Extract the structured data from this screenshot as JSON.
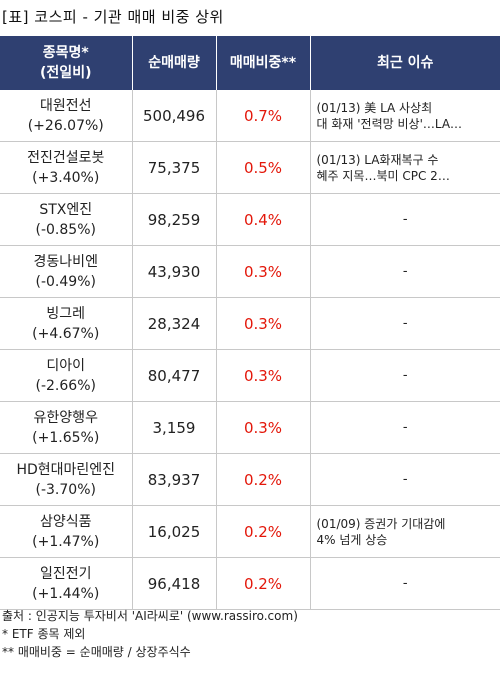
{
  "title": "[표] 코스피 - 기관 매매 비중 상위",
  "headers": {
    "name": [
      "종목명*",
      "(전일비)"
    ],
    "volume": "순매매량",
    "ratio": "매매비중**",
    "news": "최근 이슈"
  },
  "rows": [
    {
      "name": "대원전선",
      "change": "(+26.07%)",
      "volume": "500,496",
      "ratio": "0.7%",
      "news": [
        "(01/13) 美 LA 사상최",
        "대 화재 '전력망 비상'…LA…"
      ]
    },
    {
      "name": "전진건설로봇",
      "change": "(+3.40%)",
      "volume": "75,375",
      "ratio": "0.5%",
      "news": [
        "(01/13) LA화재복구 수",
        "혜주 지목…북미 CPC 2…"
      ]
    },
    {
      "name": "STX엔진",
      "change": "(-0.85%)",
      "volume": "98,259",
      "ratio": "0.4%",
      "news": [
        "-"
      ]
    },
    {
      "name": "경동나비엔",
      "change": "(-0.49%)",
      "volume": "43,930",
      "ratio": "0.3%",
      "news": [
        "-"
      ]
    },
    {
      "name": "빙그레",
      "change": "(+4.67%)",
      "volume": "28,324",
      "ratio": "0.3%",
      "news": [
        "-"
      ]
    },
    {
      "name": "디아이",
      "change": "(-2.66%)",
      "volume": "80,477",
      "ratio": "0.3%",
      "news": [
        "-"
      ]
    },
    {
      "name": "유한양행우",
      "change": "(+1.65%)",
      "volume": "3,159",
      "ratio": "0.3%",
      "news": [
        "-"
      ]
    },
    {
      "name": "HD현대마린엔진",
      "change": "(-3.70%)",
      "volume": "83,937",
      "ratio": "0.2%",
      "news": [
        "-"
      ]
    },
    {
      "name": "삼양식품",
      "change": "(+1.47%)",
      "volume": "16,025",
      "ratio": "0.2%",
      "news": [
        "(01/09) 증권가 기대감에",
        "4% 넘게 상승"
      ]
    },
    {
      "name": "일진전기",
      "change": "(+1.44%)",
      "volume": "96,418",
      "ratio": "0.2%",
      "news": [
        "-"
      ]
    }
  ],
  "footer": {
    "source": "출처 : 인공지능 투자비서 'AI라씨로' (www.rassiro.com)",
    "note1": "* ETF 종목 제외",
    "note2": "** 매매비중 = 순매매량 / 상장주식수"
  },
  "colors": {
    "header_bg": "#2f4071",
    "ratio_text": "#e3170a"
  }
}
